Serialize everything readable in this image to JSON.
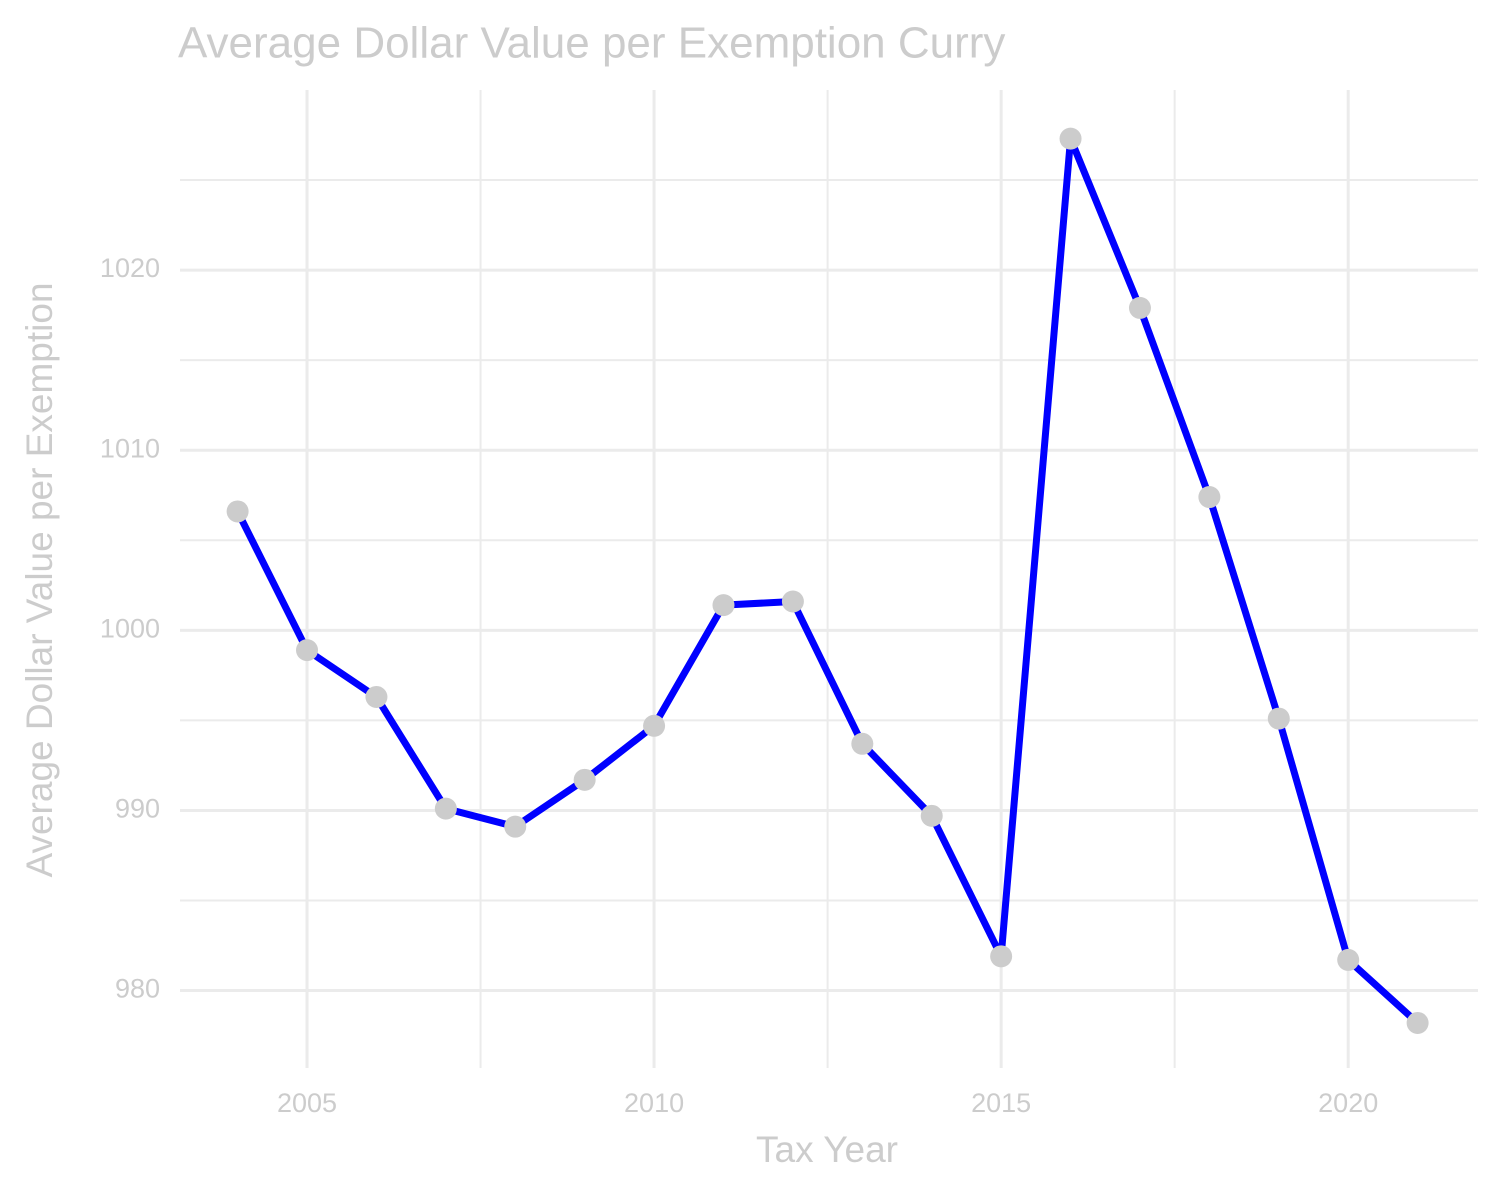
{
  "chart_data": {
    "type": "line",
    "title": "Average Dollar Value per Exemption Curry",
    "x_label": "Tax Year",
    "y_label": "Average Dollar Value per Exemption",
    "x": [
      2004,
      2005,
      2006,
      2007,
      2008,
      2009,
      2010,
      2011,
      2012,
      2013,
      2014,
      2015,
      2016,
      2017,
      2018,
      2019,
      2020,
      2021
    ],
    "series": [
      {
        "name": "Average Dollar Value per Exemption",
        "color": "#0000ff",
        "marker_color": "#cccccc",
        "values": [
          1006.6,
          998.9,
          996.3,
          990.1,
          989.1,
          991.7,
          994.7,
          1001.4,
          1001.6,
          993.7,
          989.7,
          981.9,
          1027.3,
          1017.9,
          1007.4,
          995.1,
          981.7,
          978.2
        ]
      }
    ],
    "xlim": [
      2003.17,
      2021.87
    ],
    "xticks": [
      2005,
      2010,
      2015,
      2020
    ],
    "minor_xticks": [
      2007.5,
      2012.5,
      2017.5
    ],
    "ylim": [
      975.7,
      1030
    ],
    "yticks": [
      980,
      990,
      1000,
      1010,
      1020
    ],
    "minor_yticks": [
      985,
      995,
      1005,
      1015,
      1025
    ],
    "grid": true
  }
}
